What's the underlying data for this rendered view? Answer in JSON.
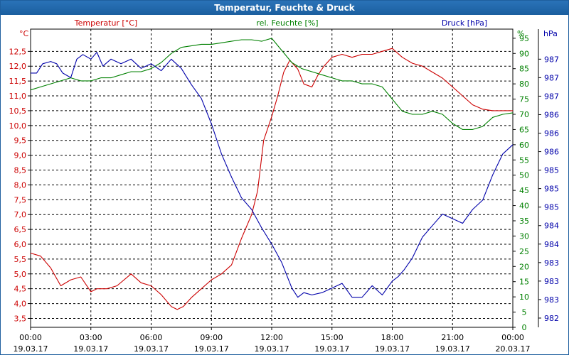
{
  "window": {
    "title": "Temperatur, Feuchte & Druck"
  },
  "colors": {
    "temperature": "#cc0000",
    "humidity": "#008000",
    "pressure": "#0000aa",
    "grid": "#000000",
    "axis_text": "#000000"
  },
  "chart_data": {
    "type": "line",
    "title": "Temperatur, Feuchte & Druck",
    "xlabel": "",
    "x_unit": "hours since 19.03.17 00:00",
    "xlim": [
      0,
      24
    ],
    "x_ticks": [
      {
        "time": "00:00",
        "date": "19.03.17"
      },
      {
        "time": "03:00",
        "date": "19.03.17"
      },
      {
        "time": "06:00",
        "date": "19.03.17"
      },
      {
        "time": "09:00",
        "date": "19.03.17"
      },
      {
        "time": "12:00",
        "date": "19.03.17"
      },
      {
        "time": "15:00",
        "date": "19.03.17"
      },
      {
        "time": "18:00",
        "date": "19.03.17"
      },
      {
        "time": "21:00",
        "date": "19.03.17"
      },
      {
        "time": "00:00",
        "date": "20.03.17"
      }
    ],
    "axes": {
      "temperature": {
        "header": "Temperatur [°C]",
        "unit": "°C",
        "ylim": [
          3.2,
          13.25
        ],
        "ticks": [
          "3,5",
          "4,0",
          "4,5",
          "5,0",
          "5,5",
          "6,0",
          "6,5",
          "7,0",
          "7,5",
          "8,0",
          "8,5",
          "9,0",
          "9,5",
          "10,0",
          "10,5",
          "11,0",
          "11,5",
          "12,0",
          "12,5"
        ]
      },
      "humidity": {
        "header": "rel. Feuchte [%]",
        "unit": "%",
        "ylim": [
          0,
          98
        ],
        "ticks": [
          "0",
          "5",
          "10",
          "15",
          "20",
          "25",
          "30",
          "35",
          "40",
          "45",
          "50",
          "55",
          "60",
          "65",
          "70",
          "75",
          "80",
          "85",
          "90",
          "95"
        ]
      },
      "pressure": {
        "header": "Druck [hPa]",
        "unit": "hPa",
        "ticks": [
          "982",
          "983",
          "983",
          "983",
          "984",
          "984",
          "985",
          "985",
          "985",
          "986",
          "986",
          "986",
          "987",
          "987",
          "987"
        ]
      }
    },
    "series": [
      {
        "name": "Temperatur",
        "axis": "temperature",
        "x": [
          0,
          0.5,
          1,
          1.5,
          2,
          2.5,
          3,
          3.3,
          3.8,
          4.3,
          5,
          5.5,
          6,
          6.5,
          7,
          7.3,
          7.6,
          8,
          8.5,
          9,
          9.5,
          10,
          10.5,
          11,
          11.3,
          11.6,
          12,
          12.3,
          12.6,
          12.9,
          13.3,
          13.6,
          14,
          14.3,
          14.6,
          15,
          15.5,
          16,
          16.5,
          17,
          17.5,
          18,
          18.5,
          19,
          19.5,
          20,
          20.5,
          21,
          21.5,
          22,
          22.5,
          23,
          23.5,
          24
        ],
        "values": [
          5.7,
          5.6,
          5.2,
          4.6,
          4.8,
          4.9,
          4.4,
          4.5,
          4.5,
          4.6,
          5.0,
          4.7,
          4.6,
          4.3,
          3.9,
          3.8,
          3.9,
          4.2,
          4.5,
          4.8,
          5.0,
          5.3,
          6.2,
          7.0,
          7.8,
          9.5,
          10.3,
          11.0,
          11.8,
          12.2,
          11.9,
          11.4,
          11.3,
          11.7,
          12.0,
          12.3,
          12.4,
          12.3,
          12.4,
          12.4,
          12.5,
          12.6,
          12.3,
          12.1,
          12.0,
          11.8,
          11.6,
          11.3,
          11.0,
          10.7,
          10.55,
          10.5,
          10.5,
          10.5
        ]
      },
      {
        "name": "rel. Feuchte",
        "axis": "humidity",
        "x": [
          0,
          0.5,
          1,
          1.5,
          2,
          2.5,
          3,
          3.5,
          4,
          4.5,
          5,
          5.5,
          6,
          6.5,
          7,
          7.5,
          8,
          8.5,
          9,
          9.5,
          10,
          10.5,
          11,
          11.5,
          12,
          12.5,
          13,
          13.5,
          14,
          14.5,
          15,
          15.5,
          16,
          16.5,
          17,
          17.5,
          18,
          18.5,
          19,
          19.5,
          20,
          20.5,
          21,
          21.5,
          22,
          22.5,
          23,
          23.5,
          24
        ],
        "values": [
          78,
          79,
          80,
          81,
          82,
          81,
          81,
          82,
          82,
          83,
          84,
          84,
          85,
          87,
          90,
          92,
          92.5,
          93,
          93,
          93.5,
          94,
          94.5,
          94.5,
          94,
          95,
          91,
          87,
          85,
          84,
          83,
          82,
          81,
          81,
          80,
          80,
          79,
          75,
          71,
          70,
          70,
          71,
          70,
          67,
          65,
          65,
          66,
          69,
          70,
          70.5
        ]
      },
      {
        "name": "Druck",
        "axis": "pressure",
        "x": [
          0,
          0.3,
          0.6,
          1,
          1.3,
          1.6,
          2,
          2.3,
          2.6,
          3,
          3.3,
          3.6,
          4,
          4.5,
          5,
          5.5,
          6,
          6.5,
          7,
          7.5,
          8,
          8.5,
          9,
          9.5,
          10,
          10.5,
          11,
          11.5,
          12,
          12.5,
          13,
          13.3,
          13.6,
          14,
          14.5,
          15,
          15.5,
          16,
          16.5,
          17,
          17.5,
          18,
          18.3,
          18.6,
          19,
          19.5,
          20,
          20.5,
          21,
          21.5,
          22,
          22.5,
          23,
          23.5,
          24
        ],
        "values": [
          987.3,
          987.3,
          987.5,
          987.55,
          987.5,
          987.3,
          987.2,
          987.6,
          987.7,
          987.6,
          987.75,
          987.45,
          987.6,
          987.5,
          987.6,
          987.4,
          987.5,
          987.35,
          987.6,
          987.4,
          987.05,
          986.75,
          986.2,
          985.55,
          985.05,
          984.6,
          984.35,
          983.95,
          983.6,
          983.2,
          982.65,
          982.45,
          982.55,
          982.5,
          982.55,
          982.65,
          982.75,
          982.45,
          982.45,
          982.7,
          982.5,
          982.8,
          982.9,
          983.05,
          983.3,
          983.75,
          984.0,
          984.25,
          984.15,
          984.05,
          984.35,
          984.55,
          985.1,
          985.55,
          985.75
        ]
      }
    ]
  }
}
